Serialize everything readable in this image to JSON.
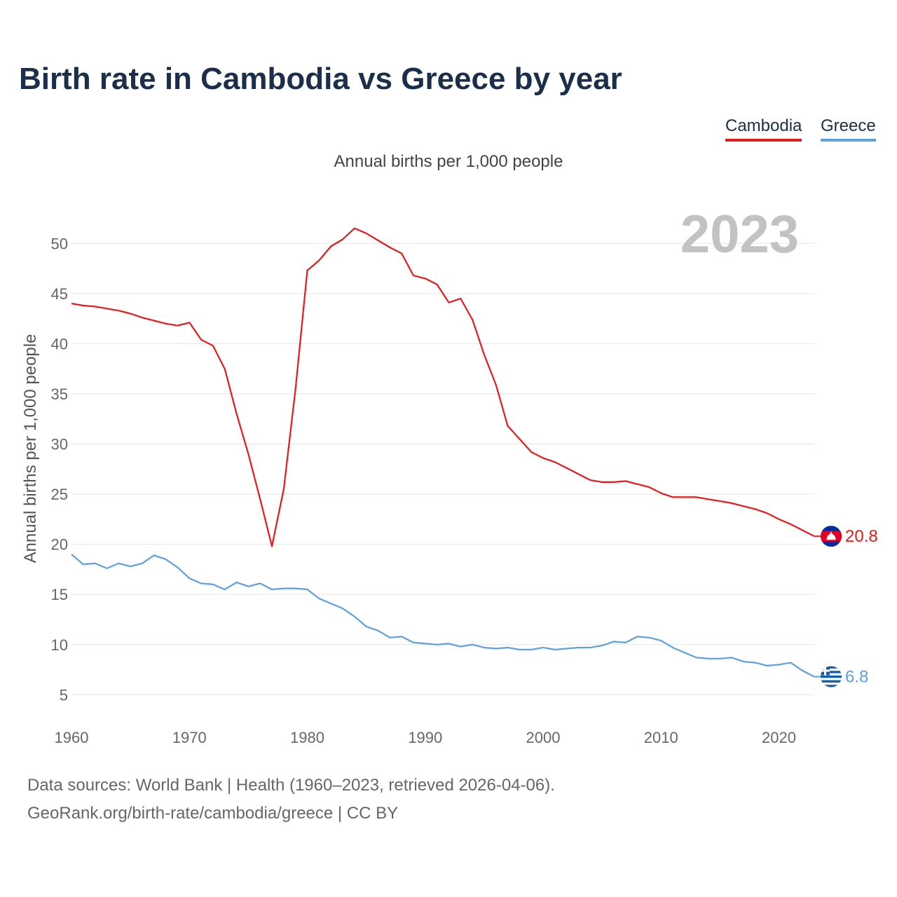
{
  "title": "Birth rate in Cambodia vs Greece by year",
  "subtitle": "Annual births per 1,000 people",
  "legend": [
    {
      "name": "Cambodia",
      "color": "#e8191a"
    },
    {
      "name": "Greece",
      "color": "#5ba0e0"
    }
  ],
  "sources": {
    "line1": "Data sources: World Bank | Health (1960–2023, retrieved 2026-04-06).",
    "line2": "GeoRank.org/birth-rate/cambodia/greece | CC BY"
  },
  "chart_data": {
    "type": "line",
    "title": "Birth rate in Cambodia vs Greece by year",
    "ylabel": "Annual births per 1,000 people",
    "xlabel": "",
    "year_label": "2023",
    "xlim": [
      1960,
      2023
    ],
    "ylim": [
      3,
      54
    ],
    "yticks": [
      5,
      10,
      15,
      20,
      25,
      30,
      35,
      40,
      45,
      50
    ],
    "xticks": [
      1960,
      1970,
      1980,
      1990,
      2000,
      2010,
      2020
    ],
    "grid": true,
    "legend_position": "top-right",
    "x": [
      1960,
      1961,
      1962,
      1963,
      1964,
      1965,
      1966,
      1967,
      1968,
      1969,
      1970,
      1971,
      1972,
      1973,
      1974,
      1975,
      1976,
      1977,
      1978,
      1979,
      1980,
      1981,
      1982,
      1983,
      1984,
      1985,
      1986,
      1987,
      1988,
      1989,
      1990,
      1991,
      1992,
      1993,
      1994,
      1995,
      1996,
      1997,
      1998,
      1999,
      2000,
      2001,
      2002,
      2003,
      2004,
      2005,
      2006,
      2007,
      2008,
      2009,
      2010,
      2011,
      2012,
      2013,
      2014,
      2015,
      2016,
      2017,
      2018,
      2019,
      2020,
      2021,
      2022,
      2023
    ],
    "series": [
      {
        "name": "Cambodia",
        "color": "#e8191a",
        "end_label": "20.8",
        "values": [
          44.0,
          43.8,
          43.7,
          43.5,
          43.3,
          43.0,
          42.6,
          42.3,
          42.0,
          41.8,
          42.1,
          40.4,
          39.8,
          37.5,
          33.0,
          29.0,
          24.5,
          19.8,
          25.5,
          35.5,
          47.3,
          48.3,
          49.7,
          50.4,
          51.5,
          51.0,
          50.3,
          49.6,
          49.0,
          46.8,
          46.5,
          45.9,
          44.1,
          44.5,
          42.4,
          38.9,
          35.9,
          31.8,
          30.5,
          29.2,
          28.6,
          28.2,
          27.6,
          27.0,
          26.4,
          26.2,
          26.2,
          26.3,
          26.0,
          25.7,
          25.1,
          24.7,
          24.7,
          24.7,
          24.5,
          24.3,
          24.1,
          23.8,
          23.5,
          23.1,
          22.5,
          22.0,
          21.4,
          20.8
        ]
      },
      {
        "name": "Greece",
        "color": "#5ba0e0",
        "end_label": "6.8",
        "values": [
          19.0,
          18.0,
          18.1,
          17.6,
          18.1,
          17.8,
          18.1,
          18.9,
          18.5,
          17.7,
          16.6,
          16.1,
          16.0,
          15.5,
          16.2,
          15.8,
          16.1,
          15.5,
          15.6,
          15.6,
          15.5,
          14.6,
          14.1,
          13.6,
          12.8,
          11.8,
          11.4,
          10.7,
          10.8,
          10.2,
          10.1,
          10.0,
          10.1,
          9.8,
          10.0,
          9.7,
          9.6,
          9.7,
          9.5,
          9.5,
          9.7,
          9.5,
          9.6,
          9.7,
          9.7,
          9.9,
          10.3,
          10.2,
          10.8,
          10.7,
          10.4,
          9.7,
          9.2,
          8.7,
          8.6,
          8.6,
          8.7,
          8.3,
          8.2,
          7.9,
          8.0,
          8.2,
          7.4,
          6.8
        ]
      }
    ]
  }
}
